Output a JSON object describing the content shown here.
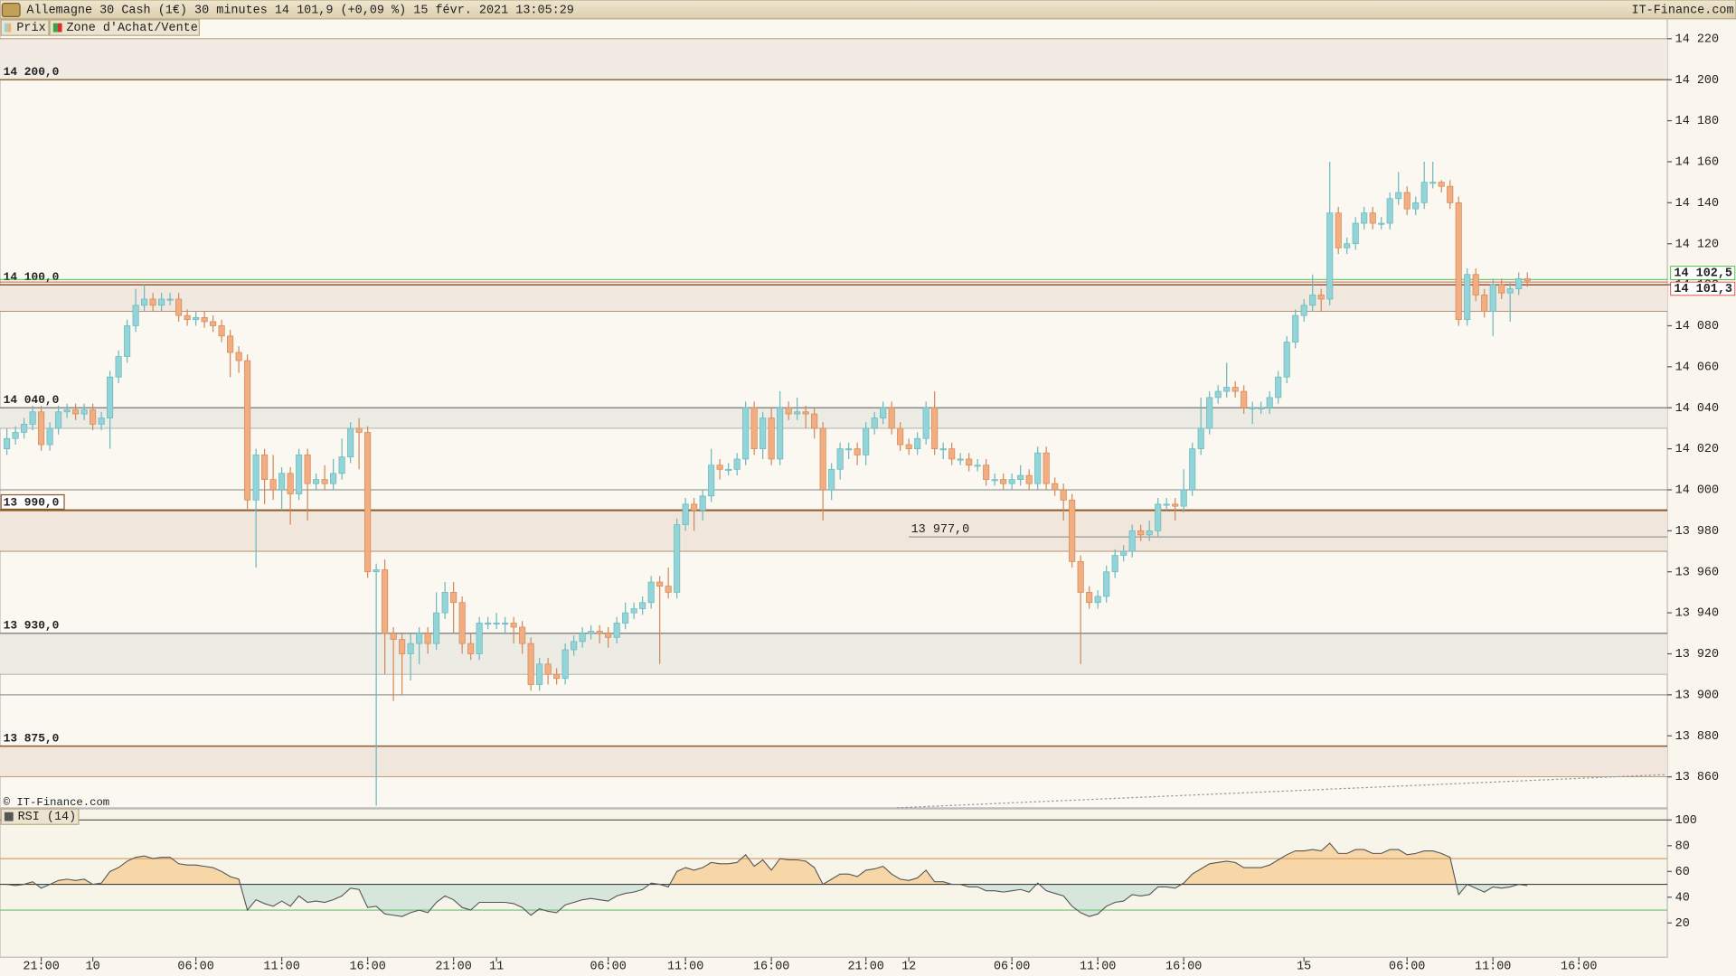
{
  "header": {
    "title": "Allemagne 30 Cash (1€) 30 minutes 14 101,9 (+0,09 %) 15 févr. 2021 13:05:29",
    "brand": "IT-Finance.com"
  },
  "chart_data": [
    {
      "type": "candlestick",
      "legend": [
        "Prix",
        "Zone d'Achat/Vente"
      ],
      "copyright": "© IT-Finance.com",
      "up_color": "#92d4d8",
      "down_color": "#f2ad80",
      "xlim": [
        -0.8,
        193.3
      ],
      "xticks": [
        {
          "value": 4,
          "label": "21:00"
        },
        {
          "value": 10,
          "label": "10"
        },
        {
          "value": 22,
          "label": "06:00"
        },
        {
          "value": 32,
          "label": "11:00"
        },
        {
          "value": 42,
          "label": "16:00"
        },
        {
          "value": 52,
          "label": "21:00"
        },
        {
          "value": 57,
          "label": "11"
        },
        {
          "value": 70,
          "label": "06:00"
        },
        {
          "value": 79,
          "label": "11:00"
        },
        {
          "value": 89,
          "label": "16:00"
        },
        {
          "value": 100,
          "label": "21:00"
        },
        {
          "value": 105,
          "label": "12"
        },
        {
          "value": 117,
          "label": "06:00"
        },
        {
          "value": 127,
          "label": "11:00"
        },
        {
          "value": 137,
          "label": "16:00"
        },
        {
          "value": 151,
          "label": "15"
        },
        {
          "value": 163,
          "label": "06:00"
        },
        {
          "value": 173,
          "label": "11:00"
        },
        {
          "value": 183,
          "label": "16:00"
        }
      ],
      "ylim": [
        13844.9,
        14229.7
      ],
      "yticks": [
        {
          "value": 14220,
          "label": "14 220"
        },
        {
          "value": 14200,
          "label": "14 200"
        },
        {
          "value": 14180,
          "label": "14 180"
        },
        {
          "value": 14160,
          "label": "14 160"
        },
        {
          "value": 14140,
          "label": "14 140"
        },
        {
          "value": 14120,
          "label": "14 120"
        },
        {
          "value": 14100,
          "label": "14 100"
        },
        {
          "value": 14080,
          "label": "14 080"
        },
        {
          "value": 14060,
          "label": "14 060"
        },
        {
          "value": 14040,
          "label": "14 040"
        },
        {
          "value": 14020,
          "label": "14 020"
        },
        {
          "value": 14000,
          "label": "14 000"
        },
        {
          "value": 13980,
          "label": "13 980"
        },
        {
          "value": 13960,
          "label": "13 960"
        },
        {
          "value": 13940,
          "label": "13 940"
        },
        {
          "value": 13920,
          "label": "13 920"
        },
        {
          "value": 13900,
          "label": "13 900"
        },
        {
          "value": 13880,
          "label": "13 880"
        },
        {
          "value": 13860,
          "label": "13 860"
        }
      ],
      "zones": [
        {
          "value": 14200,
          "label": "14 200,0",
          "to": 14220,
          "color": "#8b5a2b",
          "fill": "#f2ebe3"
        },
        {
          "value": 14100,
          "label": "14 100,0",
          "to": 14087,
          "color": "#8b5a2b",
          "fill": "#f1e8df"
        },
        {
          "value": 14040,
          "label": "14 040,0",
          "to": 14030,
          "color": "#8a8a8a",
          "fill": "#ecebe4"
        },
        {
          "value": 13990,
          "label": "13 990,0",
          "to": 13970,
          "color": "#8b5a2b",
          "fill": "#f1e6dc",
          "boxed": true
        },
        {
          "value": 13930,
          "label": "13 930,0",
          "to": 13910,
          "color": "#8a8a8a",
          "fill": "#ecebe4"
        },
        {
          "value": 13875,
          "label": "13 875,0",
          "to": 13860,
          "color": "#8b5a2b",
          "fill": "#f1e6dc"
        }
      ],
      "hlines": [
        14000,
        13900
      ],
      "level": {
        "value": 13977,
        "label": "13 977,0",
        "from": 105
      },
      "quotes": [
        {
          "value": 14102.5,
          "label": "14 102,5",
          "color": "#10b010"
        },
        {
          "value": 14101.3,
          "label": "14 101,3",
          "color": "#e02020"
        }
      ],
      "open": [
        14020,
        14025,
        14028,
        14032,
        14038,
        14022,
        14030,
        14038,
        14039,
        14037,
        14039,
        14032,
        14035,
        14055,
        14065,
        14080,
        14090,
        14093,
        14090,
        14093,
        14093,
        14085,
        14083,
        14084,
        14082,
        14080,
        14075,
        14067,
        14063,
        13995,
        14017,
        14005,
        14000,
        14008,
        13998,
        14017,
        14003,
        14005,
        14003,
        14008,
        14016,
        14030,
        14028,
        13960,
        13961,
        13930,
        13927,
        13920,
        13925,
        13930,
        13925,
        13940,
        13950,
        13945,
        13925,
        13920,
        13935,
        13935,
        13935,
        13935,
        13933,
        13925,
        13905,
        13915,
        13910,
        13908,
        13922,
        13926,
        13930,
        13931,
        13930,
        13928,
        13935,
        13940,
        13942,
        13945,
        13955,
        13953,
        13950,
        13983,
        13993,
        13990,
        13997,
        14012,
        14010,
        14010,
        14015,
        14040,
        14020,
        14035,
        14015,
        14040,
        14037,
        14038,
        14037,
        14030,
        14000,
        14010,
        14020,
        14020,
        14017,
        14030,
        14035,
        14040,
        14030,
        14022,
        14020,
        14025,
        14040,
        14020,
        14020,
        14015,
        14015,
        14012,
        14012,
        14005,
        14005,
        14003,
        14005,
        14007,
        14003,
        14018,
        14003,
        14000,
        13995,
        13965,
        13950,
        13945,
        13948,
        13960,
        13968,
        13970,
        13980,
        13978,
        13980,
        13993,
        13993,
        13992,
        14000,
        14020,
        14030,
        14045,
        14048,
        14050,
        14048,
        14040,
        14040,
        14040,
        14045,
        14055,
        14072,
        14085,
        14090,
        14095,
        14093,
        14135,
        14118,
        14120,
        14130,
        14135,
        14130,
        14130,
        14142,
        14145,
        14137,
        14140,
        14150,
        14150,
        14148,
        14140,
        14083,
        14105,
        14095,
        14087,
        14100,
        14096,
        14098,
        14103
      ],
      "high": [
        14030,
        14031,
        14035,
        14041,
        14041,
        14033,
        14041,
        14042,
        14042,
        14042,
        14042,
        14038,
        14058,
        14068,
        14083,
        14098,
        14100,
        14096,
        14096,
        14096,
        14096,
        14088,
        14087,
        14087,
        14085,
        14083,
        14078,
        14070,
        14066,
        14020,
        14020,
        14017,
        14011,
        14011,
        14020,
        14020,
        14008,
        14012,
        14015,
        14025,
        14033,
        14035,
        14031,
        13964,
        13966,
        13933,
        13930,
        13930,
        13933,
        13933,
        13950,
        13955,
        13955,
        13948,
        13930,
        13938,
        13938,
        13940,
        13938,
        13938,
        13936,
        13928,
        13918,
        13918,
        13913,
        13925,
        13929,
        13933,
        13934,
        13934,
        13933,
        13938,
        13945,
        13945,
        13948,
        13958,
        13958,
        13962,
        13986,
        13996,
        13996,
        14000,
        14020,
        14015,
        14013,
        14018,
        14043,
        14043,
        14038,
        14040,
        14048,
        14043,
        14045,
        14041,
        14040,
        14033,
        14013,
        14023,
        14023,
        14023,
        14033,
        14038,
        14043,
        14043,
        14033,
        14025,
        14028,
        14043,
        14048,
        14023,
        14023,
        14018,
        14018,
        14015,
        14015,
        14008,
        14008,
        14008,
        14012,
        14010,
        14021,
        14021,
        14006,
        14003,
        13998,
        13968,
        13953,
        13951,
        13963,
        13971,
        13973,
        13983,
        13983,
        13985,
        13996,
        13996,
        13996,
        14010,
        14023,
        14045,
        14048,
        14051,
        14062,
        14053,
        14051,
        14043,
        14043,
        14048,
        14058,
        14075,
        14088,
        14093,
        14105,
        14098,
        14160,
        14138,
        14123,
        14133,
        14138,
        14138,
        14133,
        14145,
        14155,
        14148,
        14143,
        14160,
        14160,
        14151,
        14151,
        14143,
        14108,
        14108,
        14098,
        14103,
        14103,
        14101,
        14106,
        14106
      ],
      "low": [
        14017,
        14022,
        14025,
        14029,
        14019,
        14019,
        14027,
        14035,
        14034,
        14034,
        14029,
        14029,
        14020,
        14052,
        14062,
        14077,
        14087,
        14087,
        14087,
        14090,
        14082,
        14080,
        14080,
        14079,
        14077,
        14072,
        14055,
        14057,
        13990,
        13962,
        13993,
        13995,
        13990,
        13983,
        13995,
        13985,
        14000,
        14000,
        14000,
        14005,
        14013,
        14010,
        13957,
        13846,
        13910,
        13897,
        13900,
        13907,
        13915,
        13920,
        13922,
        13937,
        13930,
        13920,
        13917,
        13917,
        13932,
        13932,
        13930,
        13925,
        13920,
        13902,
        13902,
        13905,
        13905,
        13905,
        13919,
        13923,
        13927,
        13925,
        13923,
        13925,
        13932,
        13937,
        13939,
        13942,
        13915,
        13947,
        13947,
        13980,
        13980,
        13985,
        13994,
        14005,
        14007,
        14007,
        14012,
        14017,
        14015,
        14012,
        14012,
        14034,
        14034,
        14030,
        14025,
        13985,
        13995,
        14005,
        14015,
        14012,
        14012,
        14027,
        14032,
        14027,
        14019,
        14017,
        14017,
        14022,
        14017,
        14015,
        14012,
        14012,
        14009,
        14009,
        14002,
        14002,
        14000,
        14000,
        14002,
        14000,
        14000,
        14000,
        13997,
        13985,
        13962,
        13915,
        13942,
        13942,
        13945,
        13957,
        13965,
        13967,
        13975,
        13975,
        13977,
        13990,
        13985,
        13989,
        13997,
        14017,
        14027,
        14042,
        14045,
        14045,
        14037,
        14032,
        14037,
        14037,
        14042,
        14052,
        14069,
        14082,
        14087,
        14087,
        14090,
        14115,
        14115,
        14117,
        14127,
        14127,
        14127,
        14127,
        14139,
        14134,
        14134,
        14137,
        14147,
        14145,
        14137,
        14080,
        14080,
        14092,
        14084,
        14075,
        14093,
        14082,
        14095,
        14099
      ],
      "close": [
        14025,
        14028,
        14032,
        14038,
        14022,
        14030,
        14038,
        14039,
        14037,
        14039,
        14032,
        14035,
        14055,
        14065,
        14080,
        14090,
        14093,
        14090,
        14093,
        14093,
        14085,
        14083,
        14084,
        14082,
        14080,
        14075,
        14067,
        14063,
        13995,
        14017,
        14005,
        14000,
        14008,
        13998,
        14017,
        14003,
        14005,
        14003,
        14008,
        14016,
        14030,
        14028,
        13960,
        13961,
        13930,
        13927,
        13920,
        13925,
        13930,
        13925,
        13940,
        13950,
        13945,
        13925,
        13920,
        13935,
        13935,
        13935,
        13935,
        13933,
        13925,
        13905,
        13915,
        13910,
        13908,
        13922,
        13926,
        13930,
        13931,
        13930,
        13928,
        13935,
        13940,
        13942,
        13945,
        13955,
        13953,
        13950,
        13983,
        13993,
        13990,
        13997,
        14012,
        14010,
        14010,
        14015,
        14040,
        14020,
        14035,
        14015,
        14040,
        14037,
        14038,
        14037,
        14030,
        14000,
        14010,
        14020,
        14020,
        14017,
        14030,
        14035,
        14040,
        14030,
        14022,
        14020,
        14025,
        14040,
        14020,
        14020,
        14015,
        14015,
        14012,
        14012,
        14005,
        14005,
        14003,
        14005,
        14007,
        14003,
        14018,
        14003,
        14000,
        13995,
        13965,
        13950,
        13945,
        13948,
        13960,
        13968,
        13970,
        13980,
        13978,
        13980,
        13993,
        13993,
        13992,
        14000,
        14020,
        14030,
        14045,
        14048,
        14050,
        14048,
        14040,
        14040,
        14040,
        14045,
        14055,
        14072,
        14085,
        14090,
        14095,
        14093,
        14135,
        14118,
        14120,
        14130,
        14135,
        14130,
        14130,
        14142,
        14145,
        14137,
        14140,
        14150,
        14150,
        14148,
        14140,
        14083,
        14105,
        14095,
        14087,
        14100,
        14096,
        14098,
        14103,
        14101.9
      ]
    },
    {
      "type": "line",
      "title": "RSI (14)",
      "color": "#555555",
      "above_color": "#f7d7a8",
      "below_color": "#d6e6dc",
      "ylim": [
        -6.6,
        108.6
      ],
      "yticks": [
        100,
        80,
        60,
        40,
        20
      ],
      "levels": [
        {
          "value": 100,
          "color": "#606060"
        },
        {
          "value": 70,
          "color": "#d9a064"
        },
        {
          "value": 50,
          "color": "#404040"
        },
        {
          "value": 30,
          "color": "#6fbf6f"
        }
      ],
      "values": [
        50,
        49,
        50,
        52,
        47,
        50,
        53,
        54,
        53,
        54,
        50,
        51,
        60,
        63,
        68,
        71,
        72,
        70,
        71,
        71,
        66,
        65,
        65,
        64,
        63,
        60,
        56,
        54,
        30,
        38,
        35,
        33,
        37,
        33,
        41,
        36,
        37,
        36,
        38,
        41,
        47,
        46,
        32,
        33,
        27,
        26,
        25,
        28,
        30,
        28,
        36,
        41,
        38,
        32,
        30,
        36,
        36,
        36,
        36,
        35,
        32,
        26,
        31,
        29,
        28,
        34,
        36,
        38,
        39,
        38,
        37,
        41,
        43,
        44,
        46,
        51,
        50,
        48,
        60,
        63,
        61,
        63,
        67,
        66,
        66,
        67,
        73,
        64,
        69,
        61,
        70,
        69,
        69,
        68,
        63,
        50,
        54,
        58,
        58,
        56,
        61,
        62,
        64,
        58,
        54,
        53,
        55,
        61,
        52,
        52,
        50,
        50,
        48,
        48,
        45,
        45,
        44,
        45,
        46,
        44,
        51,
        45,
        43,
        41,
        33,
        28,
        25,
        27,
        33,
        36,
        37,
        42,
        41,
        42,
        48,
        48,
        47,
        51,
        58,
        62,
        66,
        67,
        68,
        67,
        63,
        63,
        63,
        65,
        69,
        73,
        76,
        76,
        77,
        76,
        82,
        74,
        74,
        77,
        77,
        74,
        74,
        77,
        77,
        73,
        74,
        76,
        76,
        74,
        71,
        42,
        50,
        47,
        44,
        48,
        47,
        48,
        50,
        49
      ]
    }
  ]
}
